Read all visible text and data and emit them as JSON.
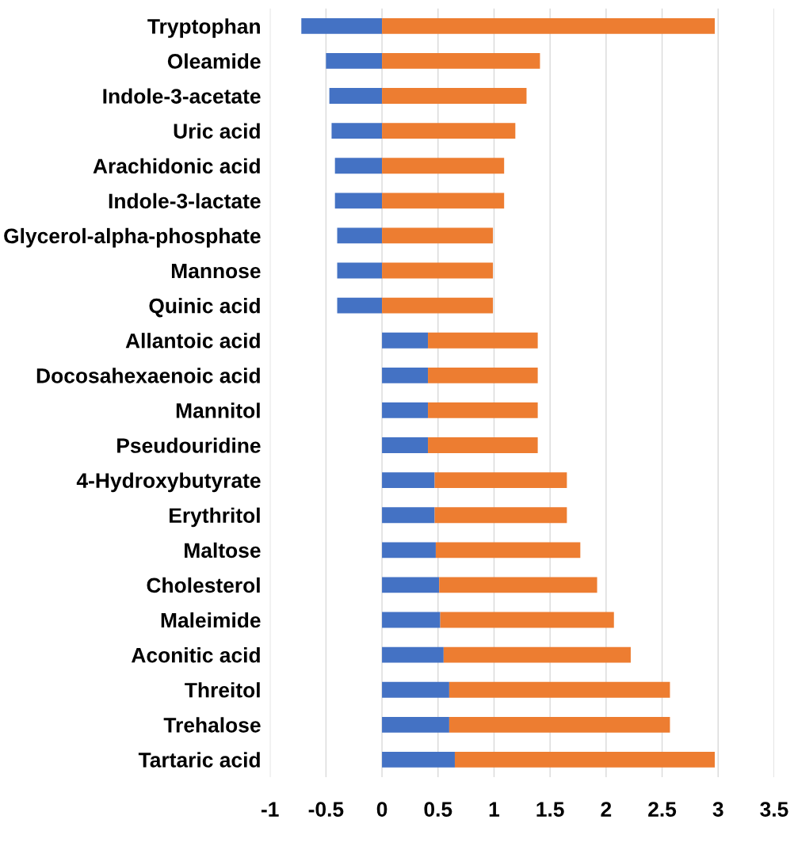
{
  "chart_data": {
    "type": "bar",
    "orientation": "horizontal",
    "stacked": true,
    "grid": "x",
    "categories": [
      "Tryptophan",
      "Oleamide",
      "Indole-3-acetate",
      "Uric acid",
      "Arachidonic acid",
      "Indole-3-lactate",
      "Glycerol-alpha-phosphate",
      "Mannose",
      "Quinic acid",
      "Allantoic acid",
      "Docosahexaenoic acid",
      "Mannitol",
      "Pseudouridine",
      "4-Hydroxybutyrate",
      "Erythritol",
      "Maltose",
      "Cholesterol",
      "Maleimide",
      "Aconitic acid",
      "Threitol",
      "Trehalose",
      "Tartaric acid"
    ],
    "series": [
      {
        "color": "#4472c4",
        "values": [
          -0.72,
          -0.5,
          -0.47,
          -0.45,
          -0.42,
          -0.42,
          -0.4,
          -0.4,
          -0.4,
          0.41,
          0.41,
          0.41,
          0.41,
          0.47,
          0.47,
          0.48,
          0.51,
          0.52,
          0.55,
          0.6,
          0.6,
          0.65
        ]
      },
      {
        "color": "#ed7d31",
        "values": [
          2.97,
          1.41,
          1.29,
          1.19,
          1.09,
          1.09,
          0.99,
          0.99,
          0.99,
          0.98,
          0.98,
          0.98,
          0.98,
          1.18,
          1.18,
          1.29,
          1.41,
          1.55,
          1.67,
          1.97,
          1.97,
          2.32
        ]
      }
    ],
    "xlim": [
      -1,
      3.5
    ],
    "xticks": [
      -1,
      -0.5,
      0,
      0.5,
      1,
      1.5,
      2,
      2.5,
      3,
      3.5
    ]
  }
}
